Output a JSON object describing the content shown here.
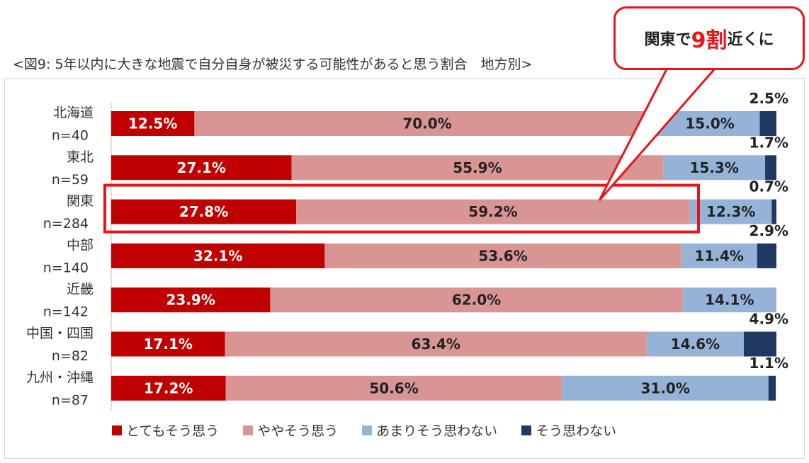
{
  "title": "<図9: 5年以内に大きな地震で自分自身が被災する可能性があると思う割合　地方別>",
  "callout": {
    "pre": "関東で",
    "highlight": "9割",
    "post": "近くに"
  },
  "colors": {
    "very": "#c00000",
    "somewhat": "#d99594",
    "not_much": "#95b3d7",
    "not": "#1f3864"
  },
  "chart_data": {
    "type": "bar",
    "orientation": "horizontal",
    "stacked": "percent",
    "categories": [
      {
        "region": "北海道",
        "n": "n=40"
      },
      {
        "region": "東北",
        "n": "n=59"
      },
      {
        "region": "関東",
        "n": "n=284"
      },
      {
        "region": "中部",
        "n": "n=140"
      },
      {
        "region": "近畿",
        "n": "n=142"
      },
      {
        "region": "中国・四国",
        "n": "n=82"
      },
      {
        "region": "九州・沖縄",
        "n": "n=87"
      }
    ],
    "series": [
      {
        "name": "とてもそう思う",
        "values": [
          12.5,
          27.1,
          27.8,
          32.1,
          23.9,
          17.1,
          17.2
        ],
        "labels": [
          "12.5%",
          "27.1%",
          "27.8%",
          "32.1%",
          "23.9%",
          "17.1%",
          "17.2%"
        ]
      },
      {
        "name": "ややそう思う",
        "values": [
          70.0,
          55.9,
          59.2,
          53.6,
          62.0,
          63.4,
          50.6
        ],
        "labels": [
          "70.0%",
          "55.9%",
          "59.2%",
          "53.6%",
          "62.0%",
          "63.4%",
          "50.6%"
        ]
      },
      {
        "name": "あまりそう思わない",
        "values": [
          15.0,
          15.3,
          12.3,
          11.4,
          14.1,
          14.6,
          31.0
        ],
        "labels": [
          "15.0%",
          "15.3%",
          "12.3%",
          "11.4%",
          "14.1%",
          "14.6%",
          "31.0%"
        ]
      },
      {
        "name": "そう思わない",
        "values": [
          2.5,
          1.7,
          0.7,
          2.9,
          0.0,
          4.9,
          1.1
        ],
        "labels": [
          "2.5%",
          "1.7%",
          "0.7%",
          "2.9%",
          "",
          "4.9%",
          "1.1%"
        ]
      }
    ],
    "highlighted_category": "関東",
    "xlim": [
      0,
      100
    ],
    "legend_position": "bottom"
  }
}
